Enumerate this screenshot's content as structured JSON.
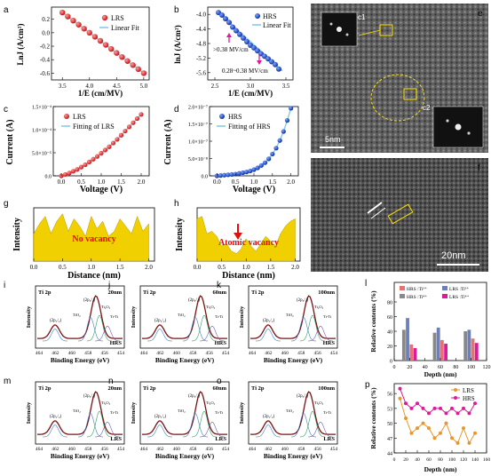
{
  "chart_data": [
    {
      "panel": "a",
      "type": "scatter",
      "xlabel": "1/E (cm/MV)",
      "ylabel": "LnJ (A/cm²)",
      "xlim": [
        3.3,
        5.1
      ],
      "ylim": [
        -0.7,
        0.38
      ],
      "xticks": [
        "3.5",
        "4.0",
        "4.5",
        "5.0"
      ],
      "yticks": [
        "-0.6",
        "-0.4",
        "-0.2",
        "0.0",
        "0.2"
      ],
      "legend": [
        "LRS",
        "Linear Fit"
      ],
      "series": [
        {
          "name": "LRS",
          "x": [
            3.5,
            3.6,
            3.7,
            3.8,
            3.9,
            4.0,
            4.1,
            4.2,
            4.3,
            4.4,
            4.5,
            4.6,
            4.7,
            4.8,
            4.9,
            5.0
          ],
          "y": [
            0.3,
            0.24,
            0.18,
            0.12,
            0.06,
            0.0,
            -0.06,
            -0.12,
            -0.18,
            -0.24,
            -0.3,
            -0.36,
            -0.42,
            -0.48,
            -0.54,
            -0.6
          ]
        },
        {
          "name": "Linear Fit",
          "x": [
            3.5,
            5.0
          ],
          "y": [
            0.3,
            -0.6
          ]
        }
      ]
    },
    {
      "panel": "b",
      "type": "scatter",
      "xlabel": "1/E (cm/MV)",
      "ylabel": "lnJ (A/cm²)",
      "xlim": [
        2.4,
        3.6
      ],
      "ylim": [
        -5.8,
        -3.8
      ],
      "xticks": [
        "2.5",
        "3.0",
        "3.5"
      ],
      "yticks": [
        "-4.0",
        "-4.4",
        "-4.8",
        "-5.2",
        "-5.6"
      ],
      "legend": [
        "HRS",
        "Linear Fit"
      ],
      "annotations": [
        ">0.38 MV/cm",
        "0.28~0.38 MV/cm"
      ],
      "series": [
        {
          "name": "HRS",
          "x": [
            2.55,
            2.6,
            2.65,
            2.7,
            2.75,
            2.8,
            2.85,
            2.9,
            2.95,
            3.0,
            3.05,
            3.1,
            3.15,
            3.2,
            3.25,
            3.3,
            3.35,
            3.4
          ],
          "y": [
            -3.95,
            -4.02,
            -4.12,
            -4.22,
            -4.35,
            -4.45,
            -4.55,
            -4.65,
            -4.75,
            -4.85,
            -4.92,
            -5.0,
            -5.08,
            -5.15,
            -5.22,
            -5.3,
            -5.38,
            -5.5
          ]
        },
        {
          "name": "Linear Fit",
          "x": [
            2.55,
            3.45
          ],
          "y": [
            -3.95,
            -5.55
          ]
        }
      ]
    },
    {
      "panel": "c",
      "type": "scatter",
      "xlabel": "Voltage (V)",
      "ylabel": "Current (A)",
      "xlim": [
        -0.2,
        2.2
      ],
      "ylim": [
        0,
        0.00015
      ],
      "xticks": [
        "0.0",
        "0.5",
        "1.0",
        "1.5",
        "2.0"
      ],
      "yticks": [
        "0.0",
        "5.0×10⁻⁵",
        "1.0×10⁻⁴",
        "1.5×10⁻⁴"
      ],
      "legend": [
        "LRS",
        "Fitting of LRS"
      ],
      "series": [
        {
          "name": "LRS",
          "x": [
            0,
            0.1,
            0.2,
            0.3,
            0.4,
            0.5,
            0.6,
            0.7,
            0.8,
            0.9,
            1.0,
            1.1,
            1.2,
            1.3,
            1.4,
            1.5,
            1.6,
            1.7,
            1.8,
            1.9,
            2.0
          ],
          "y": [
            0,
            3e-06,
            6e-06,
            1e-05,
            1.4e-05,
            1.9e-05,
            2.4e-05,
            3e-05,
            3.6e-05,
            4.2e-05,
            4.9e-05,
            5.6e-05,
            6.3e-05,
            7.1e-05,
            7.9e-05,
            8.8e-05,
            9.7e-05,
            0.000106,
            0.000115,
            0.000124,
            0.000133
          ]
        }
      ]
    },
    {
      "panel": "d",
      "type": "scatter",
      "xlabel": "Voltage (V)",
      "ylabel": "Current (A)",
      "xlim": [
        -0.2,
        2.2
      ],
      "ylim": [
        0,
        2e-07
      ],
      "xticks": [
        "0.0",
        "0.5",
        "1.0",
        "1.5",
        "2.0"
      ],
      "yticks": [
        "0.0",
        "5.0×10⁻⁸",
        "1.0×10⁻⁷",
        "1.5×10⁻⁷",
        "2.0×10⁻⁷"
      ],
      "legend": [
        "HRS",
        "Fitting of HRS"
      ],
      "series": [
        {
          "name": "HRS",
          "x": [
            0,
            0.1,
            0.2,
            0.3,
            0.4,
            0.5,
            0.6,
            0.7,
            0.8,
            0.9,
            1.0,
            1.1,
            1.2,
            1.3,
            1.4,
            1.5,
            1.6,
            1.7,
            1.8,
            1.9,
            2.0
          ],
          "y": [
            0,
            1e-09,
            2e-09,
            3e-09,
            4e-09,
            5e-09,
            7e-09,
            9e-09,
            1.1e-08,
            1.4e-08,
            1.8e-08,
            2.3e-08,
            3e-08,
            3.8e-08,
            4.9e-08,
            6.3e-08,
            8e-08,
            1.02e-07,
            1.28e-07,
            1.6e-07,
            1.95e-07
          ]
        }
      ]
    },
    {
      "panel": "g",
      "type": "area",
      "xlabel": "Distance (nm)",
      "ylabel": "Intensity",
      "xlim": [
        0,
        2.1
      ],
      "xticks": [
        "0.0",
        "0.5",
        "1.0",
        "1.5",
        "2.0"
      ],
      "annotations": [
        "No vacancy"
      ],
      "series": [
        {
          "name": "",
          "x": [
            0,
            0.1,
            0.2,
            0.3,
            0.4,
            0.5,
            0.6,
            0.7,
            0.8,
            0.9,
            1.0,
            1.1,
            1.2,
            1.3,
            1.4,
            1.5,
            1.6,
            1.7,
            1.8,
            1.9,
            2.0
          ],
          "y": [
            0.55,
            0.75,
            0.9,
            0.55,
            0.8,
            0.95,
            0.6,
            0.85,
            0.7,
            0.5,
            0.9,
            0.65,
            0.8,
            0.5,
            0.6,
            0.85,
            0.7,
            0.55,
            0.9,
            0.6,
            0.75
          ]
        }
      ]
    },
    {
      "panel": "h",
      "type": "area",
      "xlabel": "Distance (nm)",
      "ylabel": "Intensity",
      "xlim": [
        0,
        2.1
      ],
      "xticks": [
        "0.0",
        "0.5",
        "1.0",
        "1.5",
        "2.0"
      ],
      "annotations": [
        "Atomic vacancy"
      ],
      "series": [
        {
          "name": "",
          "x": [
            0,
            0.1,
            0.2,
            0.3,
            0.4,
            0.5,
            0.6,
            0.7,
            0.8,
            0.9,
            1.0,
            1.1,
            1.2,
            1.3,
            1.4,
            1.5,
            1.6,
            1.7,
            1.8,
            1.9,
            2.0
          ],
          "y": [
            0.85,
            0.9,
            0.55,
            0.6,
            0.5,
            0.3,
            0.35,
            0.2,
            0.15,
            0.25,
            0.45,
            0.3,
            0.2,
            0.35,
            0.5,
            0.4,
            0.3,
            0.55,
            0.7,
            0.8,
            0.85
          ]
        }
      ]
    },
    {
      "panel": "l",
      "type": "bar",
      "xlabel": "Depth (nm)",
      "ylabel": "Relative contents (%)",
      "ylim": [
        0,
        80
      ],
      "xticks": [
        "0",
        "20",
        "40",
        "60",
        "80",
        "100",
        "120"
      ],
      "yticks": [
        "0",
        "20",
        "40",
        "60",
        "80"
      ],
      "categories": [
        "20",
        "60",
        "100"
      ],
      "legend": [
        "HRS :Ti³⁺",
        "LRS :Ti³⁺",
        "HRS :Ti⁴⁺",
        "LRS :Ti⁴⁺"
      ],
      "series": [
        {
          "name": "HRS :Ti³⁺",
          "values": [
            42,
            38,
            40
          ]
        },
        {
          "name": "LRS :Ti³⁺",
          "values": [
            58,
            45,
            42
          ]
        },
        {
          "name": "HRS :Ti⁴⁺",
          "values": [
            22,
            28,
            30
          ]
        },
        {
          "name": "LRS :Ti⁴⁺",
          "values": [
            17,
            23,
            24
          ]
        }
      ]
    },
    {
      "panel": "p",
      "type": "line",
      "xlabel": "Depth (nm)",
      "ylabel": "Relative contents (%)",
      "xlim": [
        0,
        160
      ],
      "ylim": [
        44,
        58
      ],
      "xticks": [
        "0",
        "20",
        "40",
        "60",
        "80",
        "100",
        "120",
        "140",
        "160"
      ],
      "yticks": [
        "44",
        "47",
        "50",
        "53",
        "56"
      ],
      "legend": [
        "LRS",
        "HRS"
      ],
      "series": [
        {
          "name": "LRS",
          "x": [
            10,
            20,
            30,
            40,
            50,
            60,
            70,
            80,
            90,
            100,
            110,
            120,
            130,
            140
          ],
          "y": [
            55,
            51,
            48,
            49,
            50,
            49,
            47,
            48,
            50,
            47,
            46,
            49,
            46,
            48
          ]
        },
        {
          "name": "HRS",
          "x": [
            10,
            20,
            30,
            40,
            50,
            60,
            70,
            80,
            90,
            100,
            110,
            120,
            130,
            140
          ],
          "y": [
            57,
            54,
            53,
            54,
            53,
            52,
            53,
            53,
            52,
            53,
            52,
            53,
            52,
            54
          ]
        }
      ]
    }
  ],
  "panel_labels": {
    "a": "a",
    "b": "b",
    "c": "c",
    "d": "d",
    "e": "e",
    "f": "f",
    "g": "g",
    "h": "h",
    "i": "i",
    "j": "j",
    "k": "k",
    "l": "l",
    "m": "m",
    "n": "n",
    "o": "o",
    "p": "p"
  },
  "tem": {
    "e_scale": "5nm",
    "f_scale": "20nm",
    "c1": "c1",
    "c2": "c2"
  },
  "xps": {
    "panels": [
      {
        "id": "i",
        "depth": "20nm",
        "state": "HRS"
      },
      {
        "id": "j",
        "depth": "60nm",
        "state": "HRS"
      },
      {
        "id": "k",
        "depth": "100nm",
        "state": "HRS"
      },
      {
        "id": "m",
        "depth": "20nm",
        "state": "LRS"
      },
      {
        "id": "n",
        "depth": "60nm",
        "state": "LRS"
      },
      {
        "id": "o",
        "depth": "100nm",
        "state": "LRS"
      }
    ],
    "title": "Ti 2p",
    "ylabel": "Intensity",
    "xlabel": "Binding Energy (eV)",
    "xticks": [
      "464",
      "462",
      "460",
      "458",
      "456",
      "454"
    ],
    "peaks": [
      "(2p₁/₂)",
      "(2p₃/₂)",
      "TiO₂",
      "Ti₂O₃",
      "Ti-Ti"
    ]
  }
}
